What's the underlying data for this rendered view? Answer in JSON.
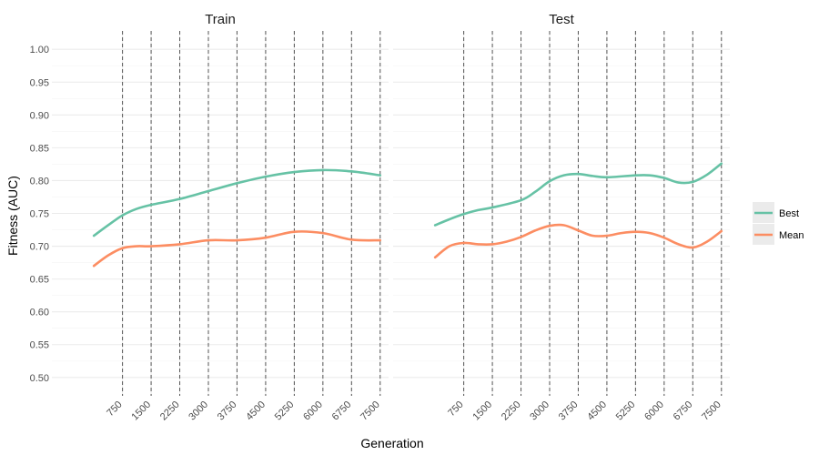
{
  "chart_data": {
    "type": "line",
    "panels": [
      {
        "title": "Train",
        "series": [
          {
            "name": "Best",
            "x": [
              0,
              375,
              750,
              1125,
              1500,
              2250,
              3000,
              3750,
              4500,
              5250,
              6000,
              6750,
              7500
            ],
            "values": [
              0.716,
              0.732,
              0.747,
              0.757,
              0.763,
              0.772,
              0.784,
              0.796,
              0.806,
              0.813,
              0.816,
              0.814,
              0.808
            ]
          },
          {
            "name": "Mean",
            "x": [
              0,
              375,
              750,
              1125,
              1500,
              2250,
              3000,
              3750,
              4500,
              5250,
              6000,
              6750,
              7500
            ],
            "values": [
              0.67,
              0.686,
              0.697,
              0.7,
              0.7,
              0.703,
              0.709,
              0.709,
              0.713,
              0.722,
              0.72,
              0.71,
              0.709
            ]
          }
        ]
      },
      {
        "title": "Test",
        "series": [
          {
            "name": "Best",
            "x": [
              0,
              375,
              750,
              1125,
              1500,
              2250,
              2625,
              3000,
              3375,
              3750,
              4125,
              4500,
              5250,
              5625,
              6000,
              6375,
              6750,
              7125,
              7500
            ],
            "values": [
              0.732,
              0.741,
              0.749,
              0.755,
              0.759,
              0.77,
              0.783,
              0.799,
              0.808,
              0.81,
              0.807,
              0.805,
              0.808,
              0.808,
              0.804,
              0.797,
              0.798,
              0.809,
              0.826
            ]
          },
          {
            "name": "Mean",
            "x": [
              0,
              375,
              750,
              1125,
              1500,
              1875,
              2250,
              2625,
              3000,
              3375,
              3750,
              4125,
              4500,
              4875,
              5250,
              5625,
              6000,
              6375,
              6750,
              7125,
              7500
            ],
            "values": [
              0.683,
              0.7,
              0.705,
              0.703,
              0.703,
              0.707,
              0.714,
              0.724,
              0.731,
              0.732,
              0.724,
              0.716,
              0.716,
              0.72,
              0.722,
              0.72,
              0.713,
              0.703,
              0.698,
              0.707,
              0.723
            ]
          }
        ]
      }
    ],
    "x_ticks": [
      750,
      1500,
      2250,
      3000,
      3750,
      4500,
      5250,
      6000,
      6750,
      7500
    ],
    "xlim": [
      -1100,
      7720
    ],
    "y_ticks": [
      "0.50",
      "0.55",
      "0.60",
      "0.65",
      "0.70",
      "0.75",
      "0.80",
      "0.85",
      "0.90",
      "0.95",
      "1.00"
    ],
    "ylim": [
      0.472,
      1.028
    ],
    "vlines": [
      750,
      1500,
      2250,
      3000,
      3750,
      4500,
      5250,
      6000,
      6750,
      7500
    ],
    "xlabel": "Generation",
    "ylabel": "Fitness (AUC)",
    "legend": {
      "placement": "right",
      "entries": [
        "Best",
        "Mean"
      ]
    },
    "grid": true,
    "colors": {
      "Best": "#66c2a5",
      "Mean": "#fc8d62",
      "grid": "#ebebeb",
      "vline": "#555555"
    }
  }
}
